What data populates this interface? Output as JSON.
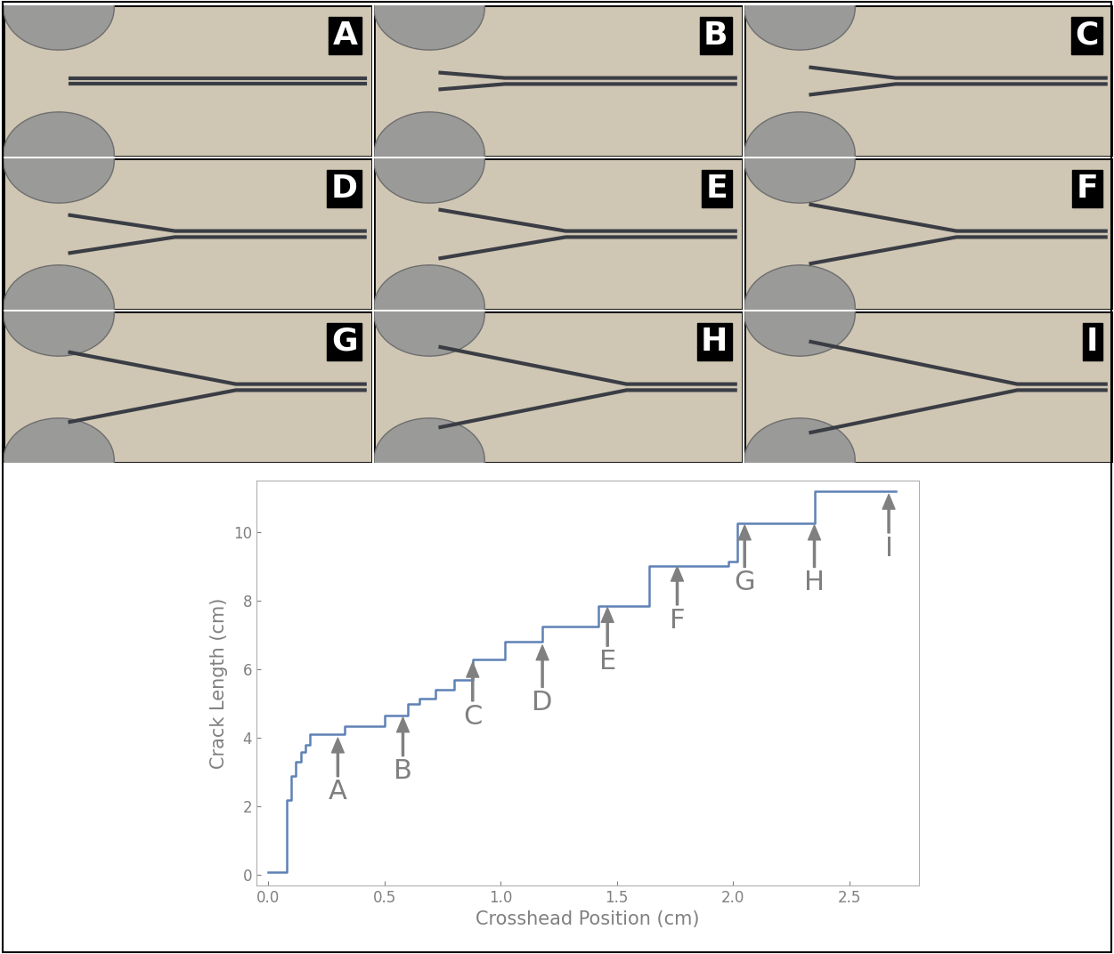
{
  "panels": {
    "labels": [
      "A",
      "B",
      "C",
      "D",
      "E",
      "F",
      "G",
      "H",
      "I"
    ]
  },
  "chart_data": {
    "type": "line",
    "line_style": "steps",
    "color": "#5e81b5",
    "x_label": "Crosshead Position (cm)",
    "y_label": "Crack Length (cm)",
    "x": [
      0.0,
      0.07,
      0.08,
      0.1,
      0.12,
      0.14,
      0.16,
      0.18,
      0.33,
      0.5,
      0.6,
      0.65,
      0.72,
      0.8,
      0.88,
      1.02,
      1.18,
      1.42,
      1.64,
      1.98,
      2.02,
      2.35,
      2.7
    ],
    "values": [
      0.1,
      0.1,
      2.2,
      2.9,
      3.3,
      3.6,
      3.8,
      4.1,
      4.35,
      4.65,
      5.0,
      5.15,
      5.4,
      5.7,
      6.3,
      6.8,
      7.25,
      7.85,
      9.0,
      9.15,
      10.25,
      11.2,
      11.2
    ],
    "xlim": [
      -0.05,
      2.8
    ],
    "ylim": [
      -0.3,
      11.5
    ],
    "xticks": [
      {
        "value": 0,
        "label": "0.0"
      },
      0.5,
      {
        "value": 1,
        "label": "1.0"
      },
      1.5,
      {
        "value": 2,
        "label": "2.0"
      },
      2.5
    ],
    "yticks": [
      0,
      2,
      4,
      6,
      8,
      10
    ],
    "annotations": [
      {
        "text": "A",
        "x": 0.3,
        "y": 4.0,
        "text_y": 2.8
      },
      {
        "text": "B",
        "x": 0.58,
        "y": 4.6,
        "text_y": 3.4
      },
      {
        "text": "C",
        "x": 0.88,
        "y": 6.2,
        "text_y": 5.0
      },
      {
        "text": "D",
        "x": 1.18,
        "y": 6.7,
        "text_y": 5.4
      },
      {
        "text": "E",
        "x": 1.46,
        "y": 7.8,
        "text_y": 6.6
      },
      {
        "text": "F",
        "x": 1.76,
        "y": 9.0,
        "text_y": 7.8
      },
      {
        "text": "G",
        "x": 2.05,
        "y": 10.2,
        "text_y": 8.9
      },
      {
        "text": "H",
        "x": 2.35,
        "y": 10.2,
        "text_y": 8.9
      },
      {
        "text": "I",
        "x": 2.67,
        "y": 11.1,
        "text_y": 9.9
      }
    ]
  }
}
